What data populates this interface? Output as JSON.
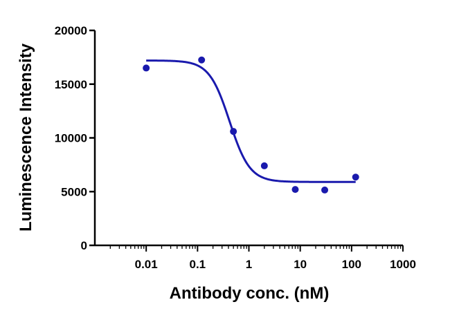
{
  "chart_data": {
    "type": "scatter",
    "xlabel": "Antibody conc. (nM)",
    "ylabel": "Luminescence Intensity",
    "xscale": "log",
    "xlim": [
      0.001,
      1000
    ],
    "ylim": [
      0,
      20000
    ],
    "grid": false,
    "legend": "none",
    "x_ticks": [
      {
        "value": 0.01,
        "label": "0.01"
      },
      {
        "value": 0.1,
        "label": "0.1"
      },
      {
        "value": 1,
        "label": "1"
      },
      {
        "value": 10,
        "label": "10"
      },
      {
        "value": 100,
        "label": "100"
      },
      {
        "value": 1000,
        "label": "1000"
      }
    ],
    "y_ticks": [
      {
        "value": 0,
        "label": "0"
      },
      {
        "value": 5000,
        "label": "5000"
      },
      {
        "value": 10000,
        "label": "10000"
      },
      {
        "value": 15000,
        "label": "15000"
      },
      {
        "value": 20000,
        "label": "20000"
      }
    ],
    "points": [
      {
        "x": 0.01,
        "y": 16500
      },
      {
        "x": 0.12,
        "y": 17250
      },
      {
        "x": 0.5,
        "y": 10600
      },
      {
        "x": 2.0,
        "y": 7400
      },
      {
        "x": 8.0,
        "y": 5200
      },
      {
        "x": 30,
        "y": 5150
      },
      {
        "x": 120,
        "y": 6350
      }
    ],
    "fit": {
      "model": "four-parameter logistic",
      "top": 17200,
      "bottom": 5900,
      "ec50": 0.42,
      "hill": 2.2,
      "x_range": [
        0.01,
        120
      ]
    },
    "color": "#1a1aad"
  }
}
